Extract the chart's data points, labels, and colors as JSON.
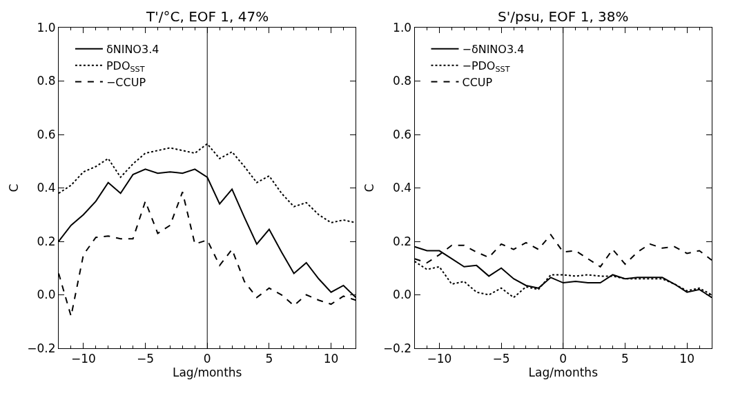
{
  "chart_data": [
    {
      "type": "line",
      "title": "T'/°C, EOF 1, 47%",
      "xlabel": "Lag/months",
      "ylabel": "C",
      "legend": "top left",
      "marker": "none",
      "xlim": [
        -12,
        12
      ],
      "xticks": [
        -10,
        -5,
        0,
        5,
        10
      ],
      "ylim": [
        -0.2,
        1.0
      ],
      "yticks": [
        {
          "value": -0.2,
          "label": "−0.2"
        },
        {
          "value": 0,
          "label": "0.0"
        },
        {
          "value": 0.2,
          "label": "0.2"
        },
        {
          "value": 0.4,
          "label": "0.4"
        },
        {
          "value": 0.6,
          "label": "0.6"
        },
        {
          "value": 0.8,
          "label": "0.8"
        },
        {
          "value": 1.0,
          "label": "1.0"
        }
      ],
      "x": [
        -12,
        -11,
        -10,
        -9,
        -8,
        -7,
        -6,
        -5,
        -4,
        -3,
        -2,
        -1,
        0,
        1,
        2,
        3,
        4,
        5,
        6,
        7,
        8,
        9,
        10,
        11,
        12
      ],
      "ref_lines": [
        {
          "axis": "x",
          "value": 0,
          "color": "#000000",
          "line_style": "solid"
        }
      ],
      "series": [
        {
          "name": "δNINO3.4",
          "color": "#000000",
          "line_style": "solid",
          "values": [
            0.2,
            0.26,
            0.3,
            0.35,
            0.42,
            0.38,
            0.45,
            0.47,
            0.455,
            0.46,
            0.455,
            0.47,
            0.44,
            0.34,
            0.395,
            0.29,
            0.19,
            0.245,
            0.16,
            0.08,
            0.12,
            0.06,
            0.01,
            0.035,
            -0.01
          ]
        },
        {
          "name": "PDO$_{SST}$",
          "color": "#000000",
          "line_style": "dotted",
          "values": [
            0.38,
            0.41,
            0.46,
            0.48,
            0.51,
            0.44,
            0.49,
            0.53,
            0.54,
            0.55,
            0.54,
            0.53,
            0.565,
            0.51,
            0.535,
            0.48,
            0.42,
            0.445,
            0.38,
            0.33,
            0.345,
            0.3,
            0.27,
            0.28,
            0.27
          ]
        },
        {
          "name": "−CCUP",
          "color": "#000000",
          "line_style": "dashed",
          "values": [
            0.08,
            -0.08,
            0.15,
            0.215,
            0.22,
            0.21,
            0.21,
            0.35,
            0.23,
            0.26,
            0.385,
            0.19,
            0.205,
            0.11,
            0.17,
            0.05,
            -0.01,
            0.025,
            0.0,
            -0.04,
            0.0,
            -0.02,
            -0.035,
            -0.005,
            -0.02
          ]
        }
      ]
    },
    {
      "type": "line",
      "title": "S'/psu, EOF 1, 38%",
      "xlabel": "Lag/months",
      "ylabel": "C",
      "legend": "top left",
      "marker": "none",
      "xlim": [
        -12,
        12
      ],
      "xticks": [
        -10,
        -5,
        0,
        5,
        10
      ],
      "ylim": [
        -0.2,
        1.0
      ],
      "yticks": [
        {
          "value": -0.2,
          "label": "−0.2"
        },
        {
          "value": 0,
          "label": "0.0"
        },
        {
          "value": 0.2,
          "label": "0.2"
        },
        {
          "value": 0.4,
          "label": "0.4"
        },
        {
          "value": 0.6,
          "label": "0.6"
        },
        {
          "value": 0.8,
          "label": "0.8"
        },
        {
          "value": 1.0,
          "label": "1.0"
        }
      ],
      "x": [
        -12,
        -11,
        -10,
        -9,
        -8,
        -7,
        -6,
        -5,
        -4,
        -3,
        -2,
        -1,
        0,
        1,
        2,
        3,
        4,
        5,
        6,
        7,
        8,
        9,
        10,
        11,
        12
      ],
      "ref_lines": [
        {
          "axis": "x",
          "value": 0,
          "color": "#000000",
          "line_style": "solid"
        }
      ],
      "series": [
        {
          "name": "−δNINO3.4",
          "color": "#000000",
          "line_style": "solid",
          "values": [
            0.18,
            0.165,
            0.165,
            0.135,
            0.105,
            0.11,
            0.07,
            0.1,
            0.06,
            0.035,
            0.025,
            0.065,
            0.045,
            0.05,
            0.045,
            0.045,
            0.075,
            0.06,
            0.065,
            0.065,
            0.065,
            0.04,
            0.01,
            0.02,
            -0.01
          ]
        },
        {
          "name": "−PDO$_{SST}$",
          "color": "#000000",
          "line_style": "dotted",
          "values": [
            0.125,
            0.095,
            0.105,
            0.04,
            0.05,
            0.01,
            0.0,
            0.025,
            -0.01,
            0.03,
            0.02,
            0.075,
            0.075,
            0.07,
            0.075,
            0.07,
            0.07,
            0.06,
            0.06,
            0.06,
            0.06,
            0.04,
            0.015,
            0.025,
            0.0
          ]
        },
        {
          "name": "CCUP",
          "color": "#000000",
          "line_style": "dashed",
          "values": [
            0.135,
            0.12,
            0.15,
            0.185,
            0.185,
            0.16,
            0.14,
            0.19,
            0.17,
            0.195,
            0.17,
            0.225,
            0.16,
            0.165,
            0.135,
            0.105,
            0.17,
            0.115,
            0.16,
            0.19,
            0.175,
            0.18,
            0.155,
            0.165,
            0.13
          ]
        }
      ]
    }
  ]
}
